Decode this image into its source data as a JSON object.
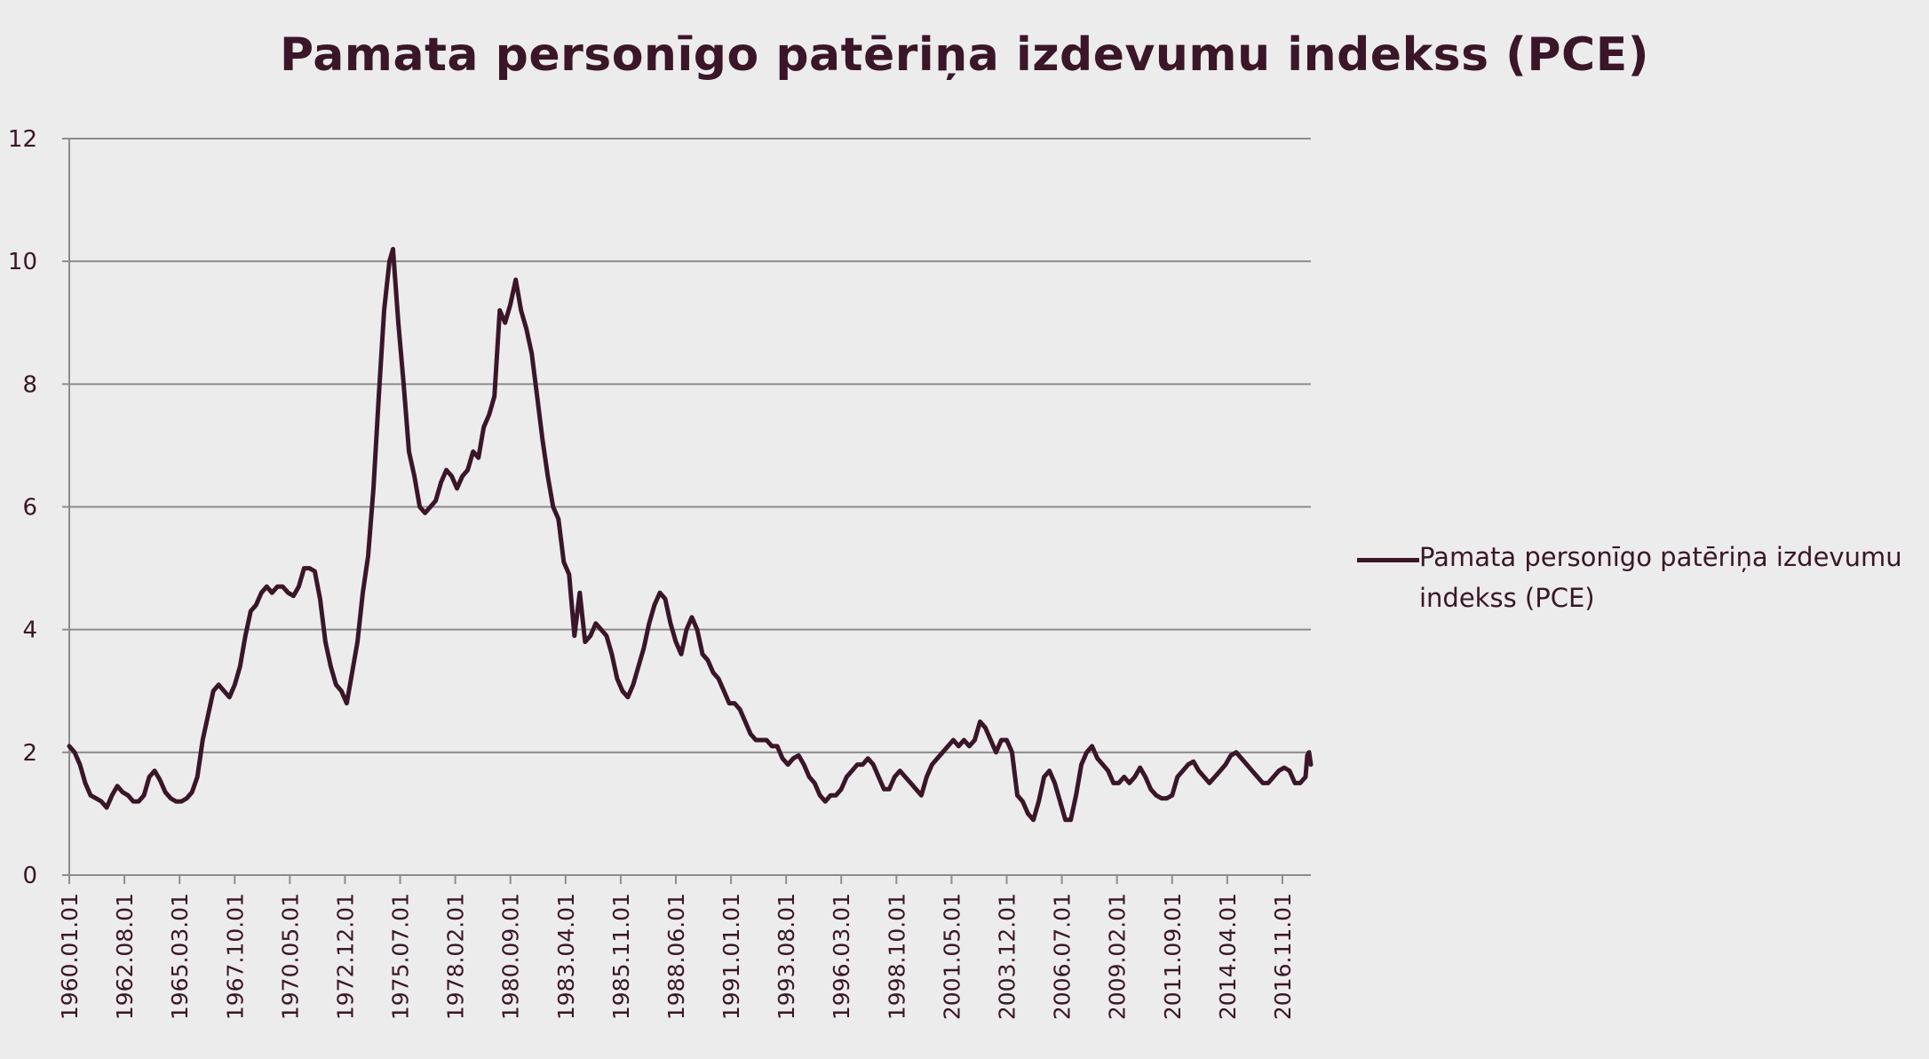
{
  "chart_data": {
    "type": "line",
    "title": "Pamata personīgo patēriņa izdevumu indekss (PCE)",
    "xlabel": "",
    "ylabel": "",
    "ylim": [
      0,
      12
    ],
    "yticks": [
      0,
      2,
      4,
      6,
      8,
      10,
      12
    ],
    "xticks": [
      "1960.01.01",
      "1962.08.01",
      "1965.03.01",
      "1967.10.01",
      "1970.05.01",
      "1972.12.01",
      "1975.07.01",
      "1978.02.01",
      "1980.09.01",
      "1983.04.01",
      "1985.11.01",
      "1988.06.01",
      "1991.01.01",
      "1993.08.01",
      "1996.03.01",
      "1998.10.01",
      "2001.05.01",
      "2003.12.01",
      "2006.07.01",
      "2009.02.01",
      "2011.09.01",
      "2014.04.01",
      "2016.11.01"
    ],
    "x_range": [
      "1960-01",
      "2018-03"
    ],
    "grid": "horizontal",
    "legend_position": "right",
    "colors": {
      "line": "#3a1628",
      "grid": "#8c8c8c",
      "background": "#ececec"
    },
    "series": [
      {
        "name": "Pamata personīgo patēriņa izdevumu indekss (PCE)",
        "points": [
          [
            "1960-01",
            2.1
          ],
          [
            "1960-04",
            2.0
          ],
          [
            "1960-07",
            1.8
          ],
          [
            "1960-10",
            1.5
          ],
          [
            "1961-01",
            1.3
          ],
          [
            "1961-04",
            1.25
          ],
          [
            "1961-07",
            1.2
          ],
          [
            "1961-10",
            1.1
          ],
          [
            "1962-01",
            1.3
          ],
          [
            "1962-04",
            1.45
          ],
          [
            "1962-07",
            1.35
          ],
          [
            "1962-10",
            1.3
          ],
          [
            "1963-01",
            1.2
          ],
          [
            "1963-04",
            1.2
          ],
          [
            "1963-07",
            1.3
          ],
          [
            "1963-10",
            1.6
          ],
          [
            "1964-01",
            1.7
          ],
          [
            "1964-04",
            1.55
          ],
          [
            "1964-07",
            1.35
          ],
          [
            "1964-10",
            1.25
          ],
          [
            "1965-01",
            1.2
          ],
          [
            "1965-04",
            1.2
          ],
          [
            "1965-07",
            1.25
          ],
          [
            "1965-10",
            1.35
          ],
          [
            "1966-01",
            1.6
          ],
          [
            "1966-04",
            2.2
          ],
          [
            "1966-07",
            2.6
          ],
          [
            "1966-10",
            3.0
          ],
          [
            "1967-01",
            3.1
          ],
          [
            "1967-04",
            3.0
          ],
          [
            "1967-07",
            2.9
          ],
          [
            "1967-10",
            3.1
          ],
          [
            "1968-01",
            3.4
          ],
          [
            "1968-04",
            3.9
          ],
          [
            "1968-07",
            4.3
          ],
          [
            "1968-10",
            4.4
          ],
          [
            "1969-01",
            4.6
          ],
          [
            "1969-04",
            4.7
          ],
          [
            "1969-07",
            4.6
          ],
          [
            "1969-10",
            4.7
          ],
          [
            "1970-01",
            4.7
          ],
          [
            "1970-04",
            4.6
          ],
          [
            "1970-07",
            4.55
          ],
          [
            "1970-10",
            4.7
          ],
          [
            "1971-01",
            5.0
          ],
          [
            "1971-04",
            5.0
          ],
          [
            "1971-07",
            4.95
          ],
          [
            "1971-10",
            4.5
          ],
          [
            "1972-01",
            3.8
          ],
          [
            "1972-04",
            3.4
          ],
          [
            "1972-07",
            3.1
          ],
          [
            "1972-10",
            3.0
          ],
          [
            "1973-01",
            2.8
          ],
          [
            "1973-04",
            3.3
          ],
          [
            "1973-07",
            3.8
          ],
          [
            "1973-10",
            4.6
          ],
          [
            "1974-01",
            5.2
          ],
          [
            "1974-04",
            6.3
          ],
          [
            "1974-07",
            7.8
          ],
          [
            "1974-10",
            9.2
          ],
          [
            "1975-01",
            10.0
          ],
          [
            "1975-03",
            10.2
          ],
          [
            "1975-06",
            9.0
          ],
          [
            "1975-09",
            8.0
          ],
          [
            "1975-12",
            6.9
          ],
          [
            "1976-03",
            6.5
          ],
          [
            "1976-06",
            6.0
          ],
          [
            "1976-09",
            5.9
          ],
          [
            "1976-12",
            6.0
          ],
          [
            "1977-03",
            6.1
          ],
          [
            "1977-06",
            6.4
          ],
          [
            "1977-09",
            6.6
          ],
          [
            "1977-12",
            6.5
          ],
          [
            "1978-03",
            6.3
          ],
          [
            "1978-06",
            6.5
          ],
          [
            "1978-09",
            6.6
          ],
          [
            "1978-12",
            6.9
          ],
          [
            "1979-03",
            6.8
          ],
          [
            "1979-06",
            7.3
          ],
          [
            "1979-09",
            7.5
          ],
          [
            "1979-12",
            7.8
          ],
          [
            "1980-03",
            9.2
          ],
          [
            "1980-06",
            9.0
          ],
          [
            "1980-09",
            9.3
          ],
          [
            "1980-12",
            9.7
          ],
          [
            "1981-03",
            9.2
          ],
          [
            "1981-06",
            8.9
          ],
          [
            "1981-09",
            8.5
          ],
          [
            "1981-12",
            7.8
          ],
          [
            "1982-03",
            7.1
          ],
          [
            "1982-06",
            6.5
          ],
          [
            "1982-09",
            6.0
          ],
          [
            "1982-12",
            5.8
          ],
          [
            "1983-03",
            5.1
          ],
          [
            "1983-06",
            4.9
          ],
          [
            "1983-09",
            3.9
          ],
          [
            "1983-12",
            4.6
          ],
          [
            "1984-03",
            3.8
          ],
          [
            "1984-06",
            3.9
          ],
          [
            "1984-09",
            4.1
          ],
          [
            "1984-12",
            4.0
          ],
          [
            "1985-03",
            3.9
          ],
          [
            "1985-06",
            3.6
          ],
          [
            "1985-09",
            3.2
          ],
          [
            "1985-12",
            3.0
          ],
          [
            "1986-03",
            2.9
          ],
          [
            "1986-06",
            3.1
          ],
          [
            "1986-09",
            3.4
          ],
          [
            "1986-12",
            3.7
          ],
          [
            "1987-03",
            4.1
          ],
          [
            "1987-06",
            4.4
          ],
          [
            "1987-09",
            4.6
          ],
          [
            "1987-12",
            4.5
          ],
          [
            "1988-03",
            4.1
          ],
          [
            "1988-06",
            3.8
          ],
          [
            "1988-09",
            3.6
          ],
          [
            "1988-12",
            4.0
          ],
          [
            "1989-03",
            4.2
          ],
          [
            "1989-06",
            4.0
          ],
          [
            "1989-09",
            3.6
          ],
          [
            "1989-12",
            3.5
          ],
          [
            "1990-03",
            3.3
          ],
          [
            "1990-06",
            3.2
          ],
          [
            "1990-09",
            3.0
          ],
          [
            "1990-12",
            2.8
          ],
          [
            "1991-03",
            2.8
          ],
          [
            "1991-06",
            2.7
          ],
          [
            "1991-09",
            2.5
          ],
          [
            "1991-12",
            2.3
          ],
          [
            "1992-03",
            2.2
          ],
          [
            "1992-06",
            2.2
          ],
          [
            "1992-09",
            2.2
          ],
          [
            "1992-12",
            2.1
          ],
          [
            "1993-03",
            2.1
          ],
          [
            "1993-06",
            1.9
          ],
          [
            "1993-09",
            1.8
          ],
          [
            "1993-12",
            1.9
          ],
          [
            "1994-03",
            1.95
          ],
          [
            "1994-06",
            1.8
          ],
          [
            "1994-09",
            1.6
          ],
          [
            "1994-12",
            1.5
          ],
          [
            "1995-03",
            1.3
          ],
          [
            "1995-06",
            1.2
          ],
          [
            "1995-09",
            1.3
          ],
          [
            "1995-12",
            1.3
          ],
          [
            "1996-03",
            1.4
          ],
          [
            "1996-06",
            1.6
          ],
          [
            "1996-09",
            1.7
          ],
          [
            "1996-12",
            1.8
          ],
          [
            "1997-03",
            1.8
          ],
          [
            "1997-06",
            1.9
          ],
          [
            "1997-09",
            1.8
          ],
          [
            "1997-12",
            1.6
          ],
          [
            "1998-03",
            1.4
          ],
          [
            "1998-06",
            1.4
          ],
          [
            "1998-09",
            1.6
          ],
          [
            "1998-12",
            1.7
          ],
          [
            "1999-03",
            1.6
          ],
          [
            "1999-06",
            1.5
          ],
          [
            "1999-09",
            1.4
          ],
          [
            "1999-12",
            1.3
          ],
          [
            "2000-03",
            1.6
          ],
          [
            "2000-06",
            1.8
          ],
          [
            "2000-09",
            1.9
          ],
          [
            "2000-12",
            2.0
          ],
          [
            "2001-03",
            2.1
          ],
          [
            "2001-06",
            2.2
          ],
          [
            "2001-09",
            2.1
          ],
          [
            "2001-12",
            2.2
          ],
          [
            "2002-03",
            2.1
          ],
          [
            "2002-06",
            2.2
          ],
          [
            "2002-09",
            2.5
          ],
          [
            "2002-12",
            2.4
          ],
          [
            "2003-03",
            2.2
          ],
          [
            "2003-06",
            2.0
          ],
          [
            "2003-09",
            2.2
          ],
          [
            "2003-12",
            2.2
          ],
          [
            "2004-03",
            2.0
          ],
          [
            "2004-06",
            1.3
          ],
          [
            "2004-09",
            1.2
          ],
          [
            "2004-12",
            1.0
          ],
          [
            "2005-03",
            0.9
          ],
          [
            "2005-06",
            1.2
          ],
          [
            "2005-09",
            1.6
          ],
          [
            "2005-12",
            1.7
          ],
          [
            "2006-03",
            1.5
          ],
          [
            "2006-06",
            1.2
          ],
          [
            "2006-09",
            0.9
          ],
          [
            "2006-12",
            0.9
          ],
          [
            "2007-03",
            1.3
          ],
          [
            "2007-06",
            1.8
          ],
          [
            "2007-09",
            2.0
          ],
          [
            "2007-12",
            2.1
          ],
          [
            "2008-03",
            1.9
          ],
          [
            "2008-06",
            1.8
          ],
          [
            "2008-09",
            1.7
          ],
          [
            "2008-12",
            1.5
          ],
          [
            "2009-03",
            1.5
          ],
          [
            "2009-06",
            1.6
          ],
          [
            "2009-09",
            1.5
          ],
          [
            "2009-12",
            1.6
          ],
          [
            "2010-03",
            1.75
          ],
          [
            "2010-06",
            1.6
          ],
          [
            "2010-09",
            1.4
          ],
          [
            "2010-12",
            1.3
          ],
          [
            "2011-03",
            1.25
          ],
          [
            "2011-06",
            1.25
          ],
          [
            "2011-09",
            1.3
          ],
          [
            "2011-12",
            1.6
          ],
          [
            "2012-03",
            1.7
          ],
          [
            "2012-06",
            1.8
          ],
          [
            "2012-09",
            1.85
          ],
          [
            "2012-12",
            1.7
          ],
          [
            "2013-03",
            1.6
          ],
          [
            "2013-06",
            1.5
          ],
          [
            "2013-09",
            1.6
          ],
          [
            "2013-12",
            1.7
          ],
          [
            "2014-03",
            1.8
          ],
          [
            "2014-06",
            1.95
          ],
          [
            "2014-09",
            2.0
          ],
          [
            "2014-12",
            1.9
          ],
          [
            "2015-03",
            1.8
          ],
          [
            "2015-06",
            1.7
          ],
          [
            "2015-09",
            1.6
          ],
          [
            "2015-12",
            1.5
          ],
          [
            "2016-03",
            1.5
          ],
          [
            "2016-06",
            1.6
          ],
          [
            "2016-09",
            1.7
          ],
          [
            "2016-12",
            1.75
          ],
          [
            "2017-03",
            1.7
          ],
          [
            "2017-06",
            1.5
          ],
          [
            "2017-09",
            1.5
          ],
          [
            "2017-12",
            1.6
          ],
          [
            "2018-01",
            1.95
          ],
          [
            "2018-02",
            2.0
          ],
          [
            "2018-03",
            1.8
          ]
        ]
      }
    ]
  }
}
